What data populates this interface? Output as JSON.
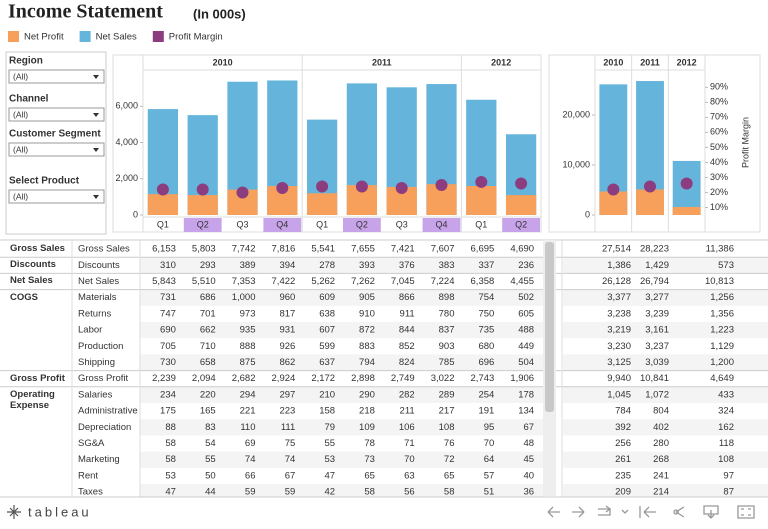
{
  "header": {
    "title": "Income Statement",
    "subtitle": "(In 000s)"
  },
  "filters": [
    {
      "label": "Region",
      "value": "(All)"
    },
    {
      "label": "Channel",
      "value": "(All)"
    },
    {
      "label": "Customer Segment",
      "value": "(All)"
    },
    {
      "label": "Select Product",
      "value": "(All)"
    }
  ],
  "chart_data": [
    {
      "type": "bar",
      "groups": [
        {
          "label": "2010",
          "categories": [
            "Q1",
            "Q2",
            "Q3",
            "Q4"
          ]
        },
        {
          "label": "2011",
          "categories": [
            "Q1",
            "Q2",
            "Q3",
            "Q4"
          ]
        },
        {
          "label": "2012",
          "categories": [
            "Q1",
            "Q2"
          ]
        }
      ],
      "highlighted": [
        "Q2",
        "Q4"
      ],
      "highlight_color": "#c7a3ea",
      "series": [
        {
          "name": "Net Sales",
          "color": "#65b4dc",
          "values": [
            5843,
            5510,
            7353,
            7422,
            5262,
            7262,
            7045,
            7224,
            6358,
            4455
          ]
        },
        {
          "name": "Net Profit",
          "color": "#f7a05b",
          "values": [
            1150,
            1100,
            1400,
            1600,
            1200,
            1650,
            1550,
            1700,
            1600,
            1100
          ]
        },
        {
          "name": "Profit Margin",
          "color": "#8c3d80",
          "axis": "y2",
          "values": [
            22,
            22,
            20,
            23,
            24,
            24,
            23,
            25,
            27,
            26
          ]
        }
      ],
      "ylim": [
        0,
        8000
      ],
      "yticks": [
        0,
        {
          "value": 2000,
          "label": "2,000"
        },
        {
          "value": 4000,
          "label": "4,000"
        },
        {
          "value": 6000,
          "label": "6,000"
        }
      ],
      "y2lim": [
        5,
        101.5
      ]
    },
    {
      "type": "bar",
      "categories": [
        "2010",
        "2011",
        "2012"
      ],
      "series": [
        {
          "name": "Net Sales",
          "color": "#65b4dc",
          "values": [
            26128,
            26794,
            10813
          ]
        },
        {
          "name": "Net Profit",
          "color": "#f7a05b",
          "values": [
            4700,
            5100,
            1600
          ]
        },
        {
          "name": "Profit Margin",
          "color": "#8c3d80",
          "axis": "y2",
          "values": [
            22,
            24,
            26
          ]
        }
      ],
      "ylim": [
        0,
        29000
      ],
      "yticks": [
        0,
        {
          "value": 10000,
          "label": "10,000"
        },
        {
          "value": 20000,
          "label": "20,000"
        }
      ],
      "y2lim": [
        5,
        101.5
      ],
      "y2ticks": [
        {
          "value": 10,
          "label": "10%"
        },
        {
          "value": 20,
          "label": "20%"
        },
        {
          "value": 30,
          "label": "30%"
        },
        {
          "value": 40,
          "label": "40%"
        },
        {
          "value": 50,
          "label": "50%"
        },
        {
          "value": 60,
          "label": "60%"
        },
        {
          "value": 70,
          "label": "70%"
        },
        {
          "value": 80,
          "label": "80%"
        },
        {
          "value": 90,
          "label": "90%"
        }
      ],
      "y2label": "Profit Margin"
    }
  ],
  "legend": [
    "Net Profit",
    "Net Sales",
    "Profit Margin"
  ],
  "table": {
    "rows": [
      {
        "group": "Gross Sales",
        "label": "Gross Sales",
        "cells": [
          "6,153",
          "5,803",
          "7,742",
          "7,816",
          "5,541",
          "7,655",
          "7,421",
          "7,607",
          "6,695",
          "4,690",
          "27,514",
          "28,223",
          "11,386"
        ]
      },
      {
        "group": "Discounts",
        "label": "Discounts",
        "cells": [
          "310",
          "293",
          "389",
          "394",
          "278",
          "393",
          "376",
          "383",
          "337",
          "236",
          "1,386",
          "1,429",
          "573"
        ]
      },
      {
        "group": "Net Sales",
        "label": "Net Sales",
        "cells": [
          "5,843",
          "5,510",
          "7,353",
          "7,422",
          "5,262",
          "7,262",
          "7,045",
          "7,224",
          "6,358",
          "4,455",
          "26,128",
          "26,794",
          "10,813"
        ]
      },
      {
        "group": "COGS",
        "label": "Materials",
        "cells": [
          "731",
          "686",
          "1,000",
          "960",
          "609",
          "905",
          "866",
          "898",
          "754",
          "502",
          "3,377",
          "3,277",
          "1,256"
        ]
      },
      {
        "label": "Returns",
        "cells": [
          "747",
          "701",
          "973",
          "817",
          "638",
          "910",
          "911",
          "780",
          "750",
          "605",
          "3,238",
          "3,239",
          "1,356"
        ]
      },
      {
        "label": "Labor",
        "cells": [
          "690",
          "662",
          "935",
          "931",
          "607",
          "872",
          "844",
          "837",
          "735",
          "488",
          "3,219",
          "3,161",
          "1,223"
        ]
      },
      {
        "label": "Production",
        "cells": [
          "705",
          "710",
          "888",
          "926",
          "599",
          "883",
          "852",
          "903",
          "680",
          "449",
          "3,230",
          "3,237",
          "1,129"
        ]
      },
      {
        "label": "Shipping",
        "cells": [
          "730",
          "658",
          "875",
          "862",
          "637",
          "794",
          "824",
          "785",
          "696",
          "504",
          "3,125",
          "3,039",
          "1,200"
        ]
      },
      {
        "group": "Gross Profit",
        "label": "Gross Profit",
        "cells": [
          "2,239",
          "2,094",
          "2,682",
          "2,924",
          "2,172",
          "2,898",
          "2,749",
          "3,022",
          "2,743",
          "1,906",
          "9,940",
          "10,841",
          "4,649"
        ]
      },
      {
        "group": "Operating Expense",
        "label": "Salaries",
        "cells": [
          "234",
          "220",
          "294",
          "297",
          "210",
          "290",
          "282",
          "289",
          "254",
          "178",
          "1,045",
          "1,072",
          "433"
        ]
      },
      {
        "label": "Administrative",
        "cells": [
          "175",
          "165",
          "221",
          "223",
          "158",
          "218",
          "211",
          "217",
          "191",
          "134",
          "784",
          "804",
          "324"
        ]
      },
      {
        "label": "Depreciation",
        "cells": [
          "88",
          "83",
          "110",
          "111",
          "79",
          "109",
          "106",
          "108",
          "95",
          "67",
          "392",
          "402",
          "162"
        ]
      },
      {
        "label": "SG&A",
        "cells": [
          "58",
          "54",
          "69",
          "75",
          "55",
          "78",
          "71",
          "76",
          "70",
          "48",
          "256",
          "280",
          "118"
        ]
      },
      {
        "label": "Marketing",
        "cells": [
          "58",
          "55",
          "74",
          "74",
          "53",
          "73",
          "70",
          "72",
          "64",
          "45",
          "261",
          "268",
          "108"
        ]
      },
      {
        "label": "Rent",
        "cells": [
          "53",
          "50",
          "66",
          "67",
          "47",
          "65",
          "63",
          "65",
          "57",
          "40",
          "235",
          "241",
          "97"
        ]
      },
      {
        "label": "Taxes",
        "cells": [
          "47",
          "44",
          "59",
          "59",
          "42",
          "58",
          "56",
          "58",
          "51",
          "36",
          "209",
          "214",
          "87"
        ]
      }
    ]
  },
  "footer": {
    "logo": "tableau"
  }
}
